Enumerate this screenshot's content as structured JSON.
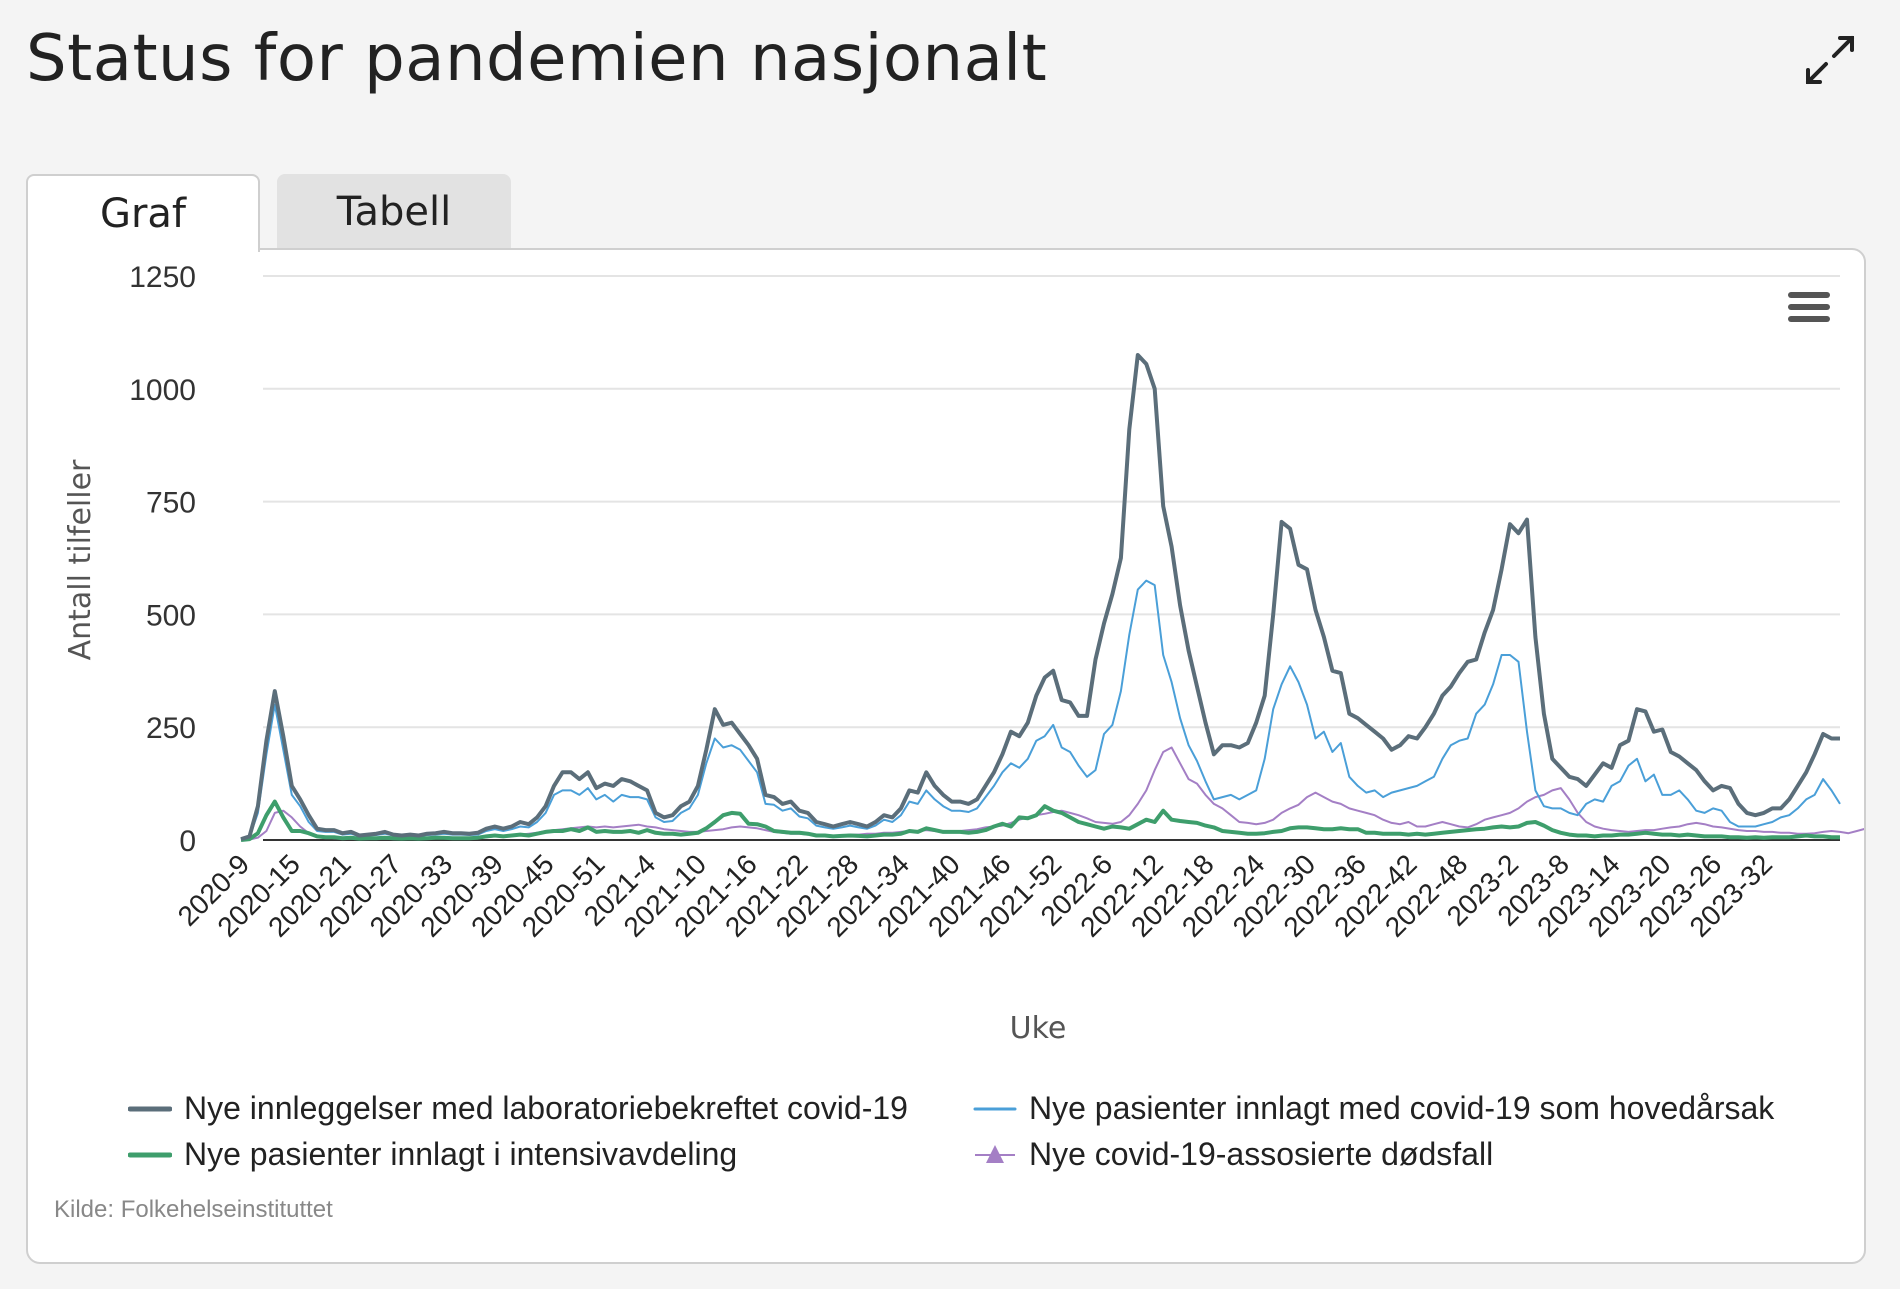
{
  "page": {
    "title": "Status for pandemien nasjonalt",
    "expand_icon": "expand-arrows-icon"
  },
  "tabs": [
    {
      "label": "Graf",
      "active": true
    },
    {
      "label": "Tabell",
      "active": false
    }
  ],
  "menu_icon": "hamburger-menu-icon",
  "credit": "Kilde: Folkehelseinstituttet",
  "chart_data": {
    "type": "line",
    "title": "",
    "xlabel": "Uke",
    "ylabel": "Antall tilfeller",
    "ylim": [
      0,
      1250
    ],
    "yticks": [
      0,
      250,
      500,
      750,
      1000,
      1250
    ],
    "grid": true,
    "legend_position": "bottom",
    "x_tick_labels": [
      "2020-9",
      "2020-15",
      "2020-21",
      "2020-27",
      "2020-33",
      "2020-39",
      "2020-45",
      "2020-51",
      "2021-4",
      "2021-10",
      "2021-16",
      "2021-22",
      "2021-28",
      "2021-34",
      "2021-40",
      "2021-46",
      "2021-52",
      "2022-6",
      "2022-12",
      "2022-18",
      "2022-24",
      "2022-30",
      "2022-36",
      "2022-42",
      "2022-48",
      "2023-2",
      "2023-8",
      "2023-14",
      "2023-20",
      "2023-26",
      "2023-32"
    ],
    "series": [
      {
        "name": "Nye innleggelser med laboratoriebekreftet covid-19",
        "color": "#5b6e7a",
        "marker": "line",
        "values": [
          2,
          8,
          75,
          220,
          330,
          230,
          120,
          90,
          55,
          25,
          22,
          22,
          15,
          18,
          10,
          12,
          14,
          18,
          12,
          10,
          12,
          10,
          14,
          15,
          18,
          15,
          15,
          14,
          16,
          25,
          30,
          25,
          30,
          40,
          35,
          50,
          75,
          120,
          150,
          150,
          135,
          150,
          115,
          125,
          120,
          135,
          130,
          120,
          110,
          60,
          50,
          55,
          75,
          85,
          120,
          200,
          290,
          255,
          260,
          235,
          210,
          180,
          100,
          95,
          80,
          85,
          65,
          60,
          40,
          35,
          30,
          35,
          40,
          35,
          30,
          40,
          55,
          50,
          70,
          110,
          105,
          150,
          120,
          100,
          85,
          85,
          80,
          90,
          120,
          150,
          190,
          240,
          230,
          260,
          320,
          360,
          375,
          310,
          305,
          275,
          275,
          400,
          480,
          545,
          625,
          910,
          1075,
          1055,
          1000,
          740,
          650,
          520,
          420,
          340,
          260,
          190,
          210,
          210,
          205,
          215,
          260,
          320,
          500,
          705,
          690,
          610,
          600,
          510,
          450,
          375,
          370,
          280,
          270,
          255,
          240,
          225,
          200,
          210,
          230,
          225,
          250,
          280,
          320,
          340,
          370,
          395,
          400,
          460,
          510,
          600,
          700,
          680,
          710,
          450,
          280,
          180,
          160,
          140,
          135,
          120,
          145,
          170,
          160,
          210,
          220,
          290,
          285,
          240,
          245,
          195,
          185,
          170,
          155,
          130,
          110,
          120,
          115,
          80,
          60,
          55,
          60,
          70,
          70,
          90,
          120,
          150,
          190,
          235,
          225,
          225
        ]
      },
      {
        "name": "Nye pasienter innlagt med covid-19 som hovedårsak",
        "color": "#4a9fd8",
        "marker": "line",
        "values": [
          1,
          6,
          60,
          190,
          300,
          200,
          100,
          75,
          40,
          20,
          18,
          18,
          12,
          14,
          8,
          10,
          11,
          14,
          10,
          8,
          10,
          8,
          11,
          12,
          14,
          12,
          12,
          11,
          12,
          20,
          24,
          20,
          24,
          30,
          28,
          40,
          60,
          100,
          110,
          110,
          100,
          115,
          90,
          100,
          85,
          100,
          95,
          95,
          90,
          50,
          40,
          42,
          60,
          70,
          100,
          170,
          225,
          205,
          210,
          200,
          175,
          150,
          80,
          78,
          65,
          70,
          52,
          48,
          32,
          28,
          25,
          28,
          32,
          28,
          25,
          32,
          45,
          40,
          55,
          85,
          80,
          110,
          90,
          75,
          65,
          65,
          62,
          70,
          95,
          120,
          150,
          170,
          160,
          180,
          220,
          230,
          255,
          205,
          195,
          165,
          140,
          155,
          235,
          255,
          330,
          455,
          555,
          575,
          565,
          410,
          350,
          270,
          210,
          175,
          130,
          90,
          95,
          100,
          90,
          100,
          110,
          180,
          290,
          345,
          385,
          350,
          300,
          225,
          240,
          195,
          215,
          140,
          120,
          105,
          110,
          95,
          105,
          110,
          115,
          120,
          130,
          140,
          180,
          210,
          220,
          225,
          280,
          300,
          345,
          410,
          410,
          395,
          240,
          110,
          75,
          70,
          70,
          60,
          55,
          80,
          90,
          85,
          120,
          130,
          165,
          180,
          130,
          145,
          100,
          100,
          110,
          90,
          65,
          60,
          70,
          65,
          40,
          30,
          30,
          30,
          35,
          40,
          50,
          55,
          70,
          90,
          100,
          135,
          110,
          80
        ]
      },
      {
        "name": "Nye pasienter innlagt i intensivavdeling",
        "color": "#3e9e6c",
        "marker": "line",
        "values": [
          0,
          2,
          15,
          55,
          85,
          50,
          20,
          20,
          15,
          8,
          6,
          6,
          4,
          5,
          3,
          4,
          4,
          5,
          4,
          3,
          4,
          3,
          4,
          5,
          5,
          4,
          4,
          4,
          5,
          8,
          10,
          8,
          10,
          12,
          10,
          14,
          18,
          20,
          20,
          24,
          20,
          28,
          18,
          20,
          18,
          18,
          20,
          16,
          22,
          16,
          14,
          14,
          12,
          14,
          16,
          26,
          40,
          55,
          60,
          58,
          36,
          35,
          30,
          20,
          18,
          16,
          16,
          14,
          10,
          10,
          8,
          9,
          10,
          9,
          8,
          10,
          12,
          12,
          14,
          20,
          18,
          26,
          22,
          18,
          18,
          18,
          16,
          18,
          22,
          30,
          36,
          30,
          50,
          48,
          55,
          75,
          65,
          60,
          50,
          40,
          35,
          30,
          25,
          30,
          28,
          25,
          35,
          45,
          40,
          65,
          45,
          42,
          40,
          38,
          32,
          28,
          20,
          18,
          16,
          14,
          14,
          15,
          18,
          20,
          26,
          28,
          28,
          26,
          24,
          24,
          26,
          24,
          24,
          16,
          16,
          14,
          14,
          14,
          12,
          14,
          12,
          14,
          16,
          18,
          20,
          22,
          24,
          25,
          28,
          30,
          28,
          30,
          38,
          40,
          32,
          22,
          16,
          12,
          10,
          10,
          8,
          10,
          10,
          12,
          12,
          14,
          16,
          14,
          12,
          12,
          10,
          12,
          10,
          8,
          8,
          8,
          6,
          6,
          5,
          6,
          5,
          6,
          6,
          6,
          8,
          10,
          8,
          8,
          6,
          6
        ]
      },
      {
        "name": "Nye covid-19-assosierte dødsfall",
        "color": "#a47fc5",
        "marker": "triangle",
        "values": [
          0,
          1,
          5,
          20,
          60,
          65,
          50,
          30,
          15,
          8,
          6,
          4,
          3,
          3,
          2,
          2,
          3,
          3,
          2,
          2,
          3,
          3,
          3,
          4,
          5,
          4,
          4,
          4,
          5,
          6,
          8,
          8,
          10,
          12,
          14,
          16,
          20,
          22,
          24,
          26,
          28,
          30,
          28,
          30,
          28,
          30,
          32,
          34,
          30,
          28,
          24,
          22,
          20,
          18,
          18,
          20,
          22,
          24,
          28,
          30,
          28,
          26,
          22,
          18,
          16,
          14,
          14,
          12,
          12,
          10,
          10,
          10,
          12,
          12,
          14,
          14,
          16,
          16,
          18,
          20,
          20,
          22,
          20,
          18,
          18,
          20,
          22,
          24,
          28,
          30,
          32,
          38,
          45,
          50,
          55,
          58,
          62,
          65,
          60,
          55,
          48,
          40,
          38,
          36,
          40,
          55,
          80,
          110,
          155,
          195,
          205,
          170,
          135,
          125,
          100,
          80,
          70,
          55,
          40,
          38,
          35,
          38,
          45,
          60,
          70,
          78,
          95,
          105,
          95,
          85,
          80,
          70,
          65,
          60,
          55,
          45,
          38,
          35,
          40,
          30,
          30,
          35,
          40,
          35,
          30,
          28,
          35,
          45,
          50,
          55,
          60,
          70,
          85,
          95,
          100,
          110,
          115,
          90,
          60,
          40,
          30,
          25,
          22,
          20,
          18,
          20,
          22,
          22,
          25,
          28,
          30,
          35,
          38,
          35,
          30,
          28,
          25,
          22,
          20,
          20,
          18,
          18,
          16,
          16,
          14,
          14,
          15,
          18,
          20,
          18,
          15,
          20,
          25,
          30
        ]
      }
    ]
  }
}
